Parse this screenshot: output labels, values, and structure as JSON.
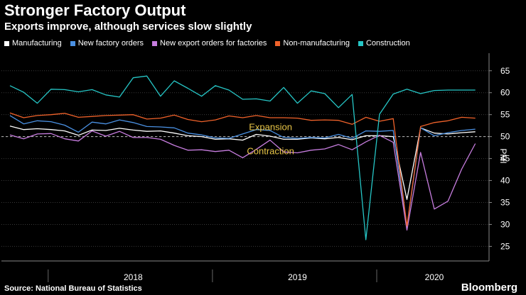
{
  "chart_data": {
    "type": "line",
    "title": "Stronger Factory Output",
    "subtitle": "Exports improve, although services slow slightly",
    "ylabel": "PMI",
    "ylim": [
      22,
      69
    ],
    "yticks": [
      25,
      30,
      35,
      40,
      45,
      50,
      55,
      60,
      65
    ],
    "reference_line": 50,
    "x_start_year": 2017.75,
    "x_end_year": 2020.583,
    "year_labels": [
      {
        "label": "2018",
        "year": 2018
      },
      {
        "label": "2019",
        "year": 2019
      },
      {
        "label": "2020",
        "year": 2020
      }
    ],
    "annotations": [
      {
        "text": "Expansion",
        "x_index": 18,
        "y": 51.5
      },
      {
        "text": "Contraction",
        "x_index": 18,
        "y": 46.0
      }
    ],
    "x": [
      "Sep 2017",
      "Oct 2017",
      "Nov 2017",
      "Dec 2017",
      "Jan 2018",
      "Feb 2018",
      "Mar 2018",
      "Apr 2018",
      "May 2018",
      "Jun 2018",
      "Jul 2018",
      "Aug 2018",
      "Sep 2018",
      "Oct 2018",
      "Nov 2018",
      "Dec 2018",
      "Jan 2019",
      "Feb 2019",
      "Mar 2019",
      "Apr 2019",
      "May 2019",
      "Jun 2019",
      "Jul 2019",
      "Aug 2019",
      "Sep 2019",
      "Oct 2019",
      "Nov 2019",
      "Dec 2019",
      "Jan 2020",
      "Feb 2020",
      "Mar 2020",
      "Apr 2020",
      "May 2020",
      "Jun 2020",
      "Jul 2020"
    ],
    "series": [
      {
        "name": "Manufacturing",
        "color": "#ffffff",
        "values": [
          52.4,
          51.6,
          51.8,
          51.6,
          51.3,
          50.3,
          51.5,
          51.4,
          51.9,
          51.5,
          51.2,
          51.3,
          50.8,
          50.2,
          50.0,
          49.4,
          49.5,
          49.2,
          50.5,
          50.1,
          49.4,
          49.4,
          49.7,
          49.5,
          49.8,
          49.3,
          50.2,
          50.2,
          50.0,
          35.7,
          52.0,
          50.8,
          50.6,
          50.9,
          51.1
        ]
      },
      {
        "name": "New factory orders",
        "color": "#4a90e2",
        "values": [
          54.8,
          52.9,
          53.6,
          53.4,
          52.6,
          51.0,
          53.3,
          52.9,
          53.8,
          53.2,
          52.3,
          52.2,
          52.0,
          50.8,
          50.4,
          49.7,
          49.6,
          50.6,
          51.6,
          51.4,
          49.8,
          49.6,
          49.8,
          49.7,
          50.5,
          49.6,
          51.3,
          51.2,
          51.4,
          29.3,
          52.0,
          50.2,
          50.9,
          51.4,
          51.7
        ]
      },
      {
        "name": "New export orders for factories",
        "color": "#c77ddf",
        "values": [
          50.4,
          49.5,
          50.6,
          50.7,
          49.5,
          49.0,
          51.3,
          50.1,
          51.2,
          49.8,
          49.8,
          49.4,
          48.0,
          46.9,
          47.0,
          46.6,
          46.9,
          45.2,
          47.1,
          49.2,
          46.5,
          46.3,
          46.9,
          47.2,
          48.2,
          47.0,
          48.8,
          50.3,
          48.7,
          28.7,
          46.4,
          33.5,
          35.3,
          42.6,
          48.4
        ]
      },
      {
        "name": "Non-manufacturing",
        "color": "#f0622a",
        "values": [
          55.4,
          54.3,
          54.8,
          55.0,
          55.3,
          54.4,
          54.6,
          54.8,
          54.9,
          55.0,
          54.0,
          54.2,
          54.9,
          53.9,
          53.4,
          53.8,
          54.7,
          54.3,
          54.8,
          54.3,
          54.3,
          54.2,
          53.7,
          53.8,
          53.7,
          52.8,
          54.4,
          53.5,
          54.1,
          29.6,
          52.3,
          53.2,
          53.6,
          54.4,
          54.2
        ]
      },
      {
        "name": "Construction",
        "color": "#26c6c6",
        "values": [
          61.6,
          60.1,
          57.6,
          60.8,
          60.7,
          60.2,
          60.7,
          59.5,
          59.0,
          63.4,
          63.8,
          59.2,
          62.7,
          61.0,
          59.2,
          61.6,
          60.6,
          58.5,
          58.6,
          58.1,
          61.2,
          57.6,
          60.4,
          59.8,
          56.6,
          59.6,
          26.5,
          55.1,
          59.7,
          60.8,
          59.8,
          60.5,
          60.6,
          60.6,
          60.6
        ]
      }
    ]
  },
  "footer": {
    "source": "Source: National Bureau of Statistics",
    "brand": "Bloomberg"
  }
}
